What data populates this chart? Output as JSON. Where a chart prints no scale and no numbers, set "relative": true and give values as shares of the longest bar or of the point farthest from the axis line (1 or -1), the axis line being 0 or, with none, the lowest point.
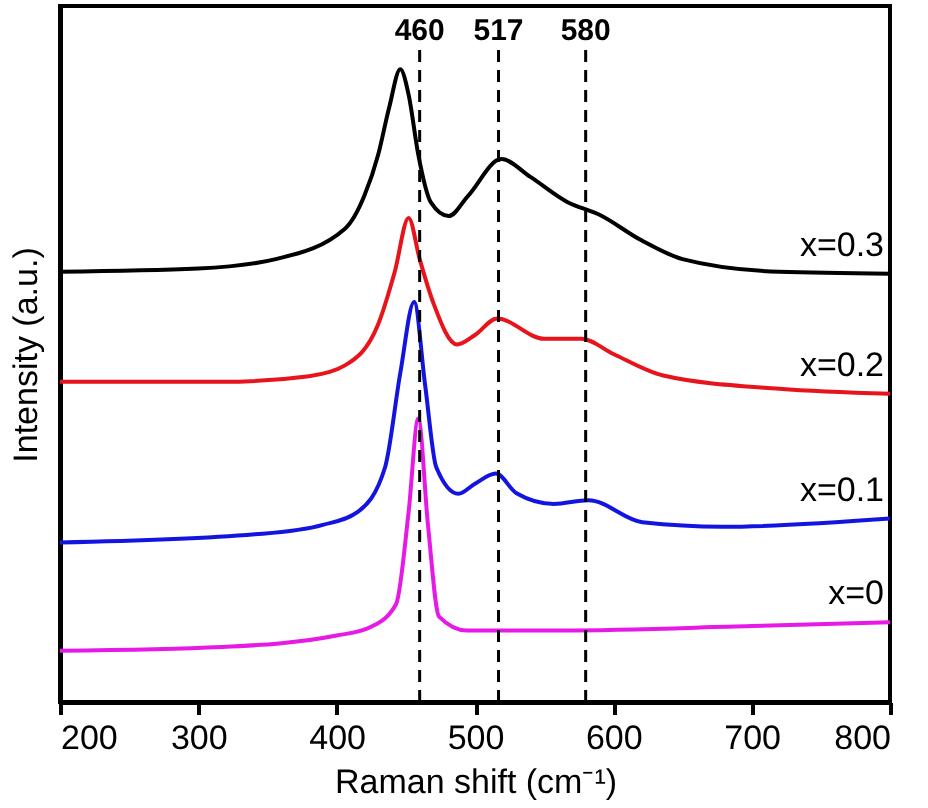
{
  "chart_data": {
    "type": "line",
    "relative": true,
    "xlabel": "Raman shift (cm⁻¹)",
    "ylabel": "Intensity (a.u.)",
    "xlim": [
      200,
      800
    ],
    "xticks": [
      200,
      300,
      400,
      500,
      600,
      700,
      800
    ],
    "grid": false,
    "line_style": "solid",
    "marker": "none",
    "ref_lines": [
      {
        "axis": "x",
        "value": 460,
        "label": "460",
        "color": "#000000",
        "line_style": "dashed"
      },
      {
        "axis": "x",
        "value": 517,
        "label": "517",
        "color": "#000000",
        "line_style": "dashed"
      },
      {
        "axis": "x",
        "value": 580,
        "label": "580",
        "color": "#000000",
        "line_style": "dashed"
      }
    ],
    "series": [
      {
        "name": "x=0.3",
        "color": "#000000",
        "x": [
          200,
          300,
          356,
          406,
          420,
          430,
          438,
          446,
          452,
          459,
          468,
          481,
          495,
          519,
          540,
          567,
          590,
          620,
          650,
          720,
          800
        ],
        "values": [
          0.68,
          0.685,
          0.7,
          0.748,
          0.8,
          0.865,
          0.94,
          1.0,
          0.96,
          0.865,
          0.79,
          0.768,
          0.8,
          0.858,
          0.83,
          0.79,
          0.77,
          0.73,
          0.7,
          0.68,
          0.677
        ]
      },
      {
        "name": "x=0.2",
        "color": "#e8141c",
        "x": [
          200,
          317,
          380,
          406,
          430,
          442,
          452,
          460,
          470,
          487,
          500,
          516,
          550,
          577,
          600,
          636,
          720,
          800
        ],
        "values": [
          0.506,
          0.506,
          0.515,
          0.532,
          0.597,
          0.68,
          0.765,
          0.7,
          0.63,
          0.565,
          0.58,
          0.606,
          0.574,
          0.574,
          0.55,
          0.516,
          0.495,
          0.487
        ]
      },
      {
        "name": "x=0.1",
        "color": "#1414e0",
        "x": [
          200,
          341,
          390,
          415,
          435,
          446,
          456,
          464,
          472,
          488,
          500,
          515,
          530,
          557,
          582,
          621,
          679,
          800
        ],
        "values": [
          0.252,
          0.265,
          0.28,
          0.3,
          0.371,
          0.52,
          0.632,
          0.5,
          0.371,
          0.329,
          0.345,
          0.361,
          0.33,
          0.313,
          0.319,
          0.284,
          0.277,
          0.29
        ]
      },
      {
        "name": "x=0",
        "color": "#e619e6",
        "x": [
          200,
          317,
          400,
          425,
          443,
          452,
          459,
          466,
          474,
          494,
          562,
          700,
          800
        ],
        "values": [
          0.081,
          0.087,
          0.105,
          0.119,
          0.155,
          0.3,
          0.448,
          0.28,
          0.135,
          0.113,
          0.113,
          0.12,
          0.126
        ]
      }
    ]
  }
}
